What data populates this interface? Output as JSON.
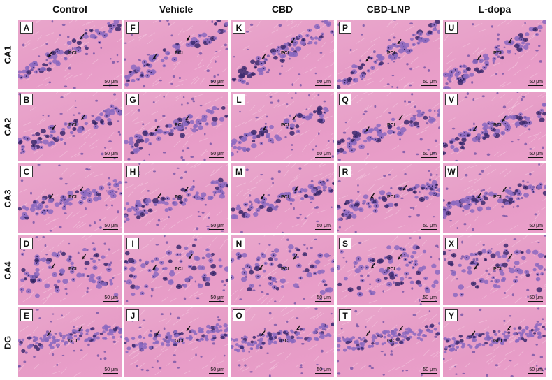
{
  "columns": [
    "Control",
    "Vehicle",
    "CBD",
    "CBD-LNP",
    "L-dopa"
  ],
  "rows": [
    {
      "label": "CA1",
      "layer": "PCL"
    },
    {
      "label": "CA2",
      "layer": "PCL"
    },
    {
      "label": "CA3",
      "layer": "PCL"
    },
    {
      "label": "CA4",
      "layer": "PCL"
    },
    {
      "label": "DG",
      "layer": "GCL"
    }
  ],
  "panel_letters": [
    "A",
    "F",
    "K",
    "P",
    "U",
    "B",
    "G",
    "L",
    "Q",
    "V",
    "C",
    "H",
    "M",
    "R",
    "W",
    "D",
    "I",
    "N",
    "S",
    "X",
    "E",
    "J",
    "O",
    "T",
    "Y"
  ],
  "scale_bar_label": "50 μm",
  "colors": {
    "tissue": "#e89fc9",
    "nuclei": "#7a5ab0",
    "dark_nuclei": "#3c2a6e",
    "arrow": "#111111"
  }
}
